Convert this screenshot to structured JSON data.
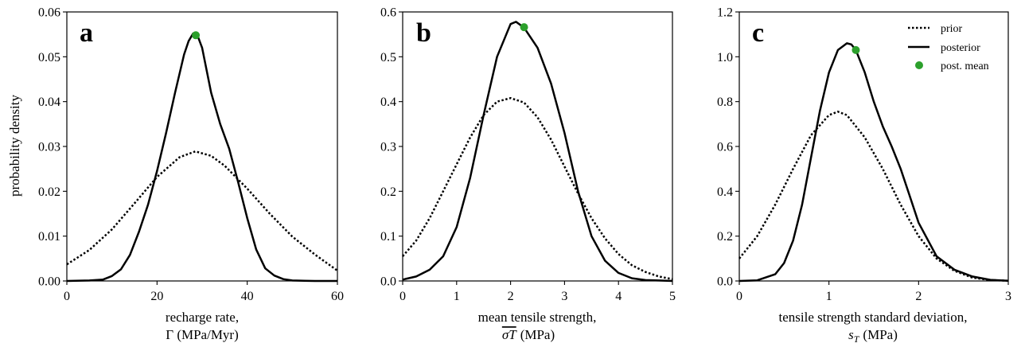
{
  "chart_data": [
    {
      "type": "line",
      "panel_label": "a",
      "xlabel_line1": "recharge rate,",
      "xlabel_line2": "Γ (MPa/Myr)",
      "ylabel": "probability density",
      "xlim": [
        0,
        60
      ],
      "ylim": [
        0,
        0.06
      ],
      "xticks": [
        0,
        20,
        40,
        60
      ],
      "xtick_labels": [
        "0",
        "20",
        "40",
        "60"
      ],
      "yticks": [
        0,
        0.01,
        0.02,
        0.03,
        0.04,
        0.05,
        0.06
      ],
      "ytick_labels": [
        "0.00",
        "0.01",
        "0.02",
        "0.03",
        "0.04",
        "0.05",
        "0.06"
      ],
      "series": [
        {
          "name": "prior",
          "style": "dotted",
          "color": "#000000",
          "x": [
            0,
            5,
            10,
            15,
            20,
            25,
            28.5,
            32,
            35,
            40,
            45,
            50,
            55,
            60
          ],
          "y": [
            0.0037,
            0.0069,
            0.0115,
            0.0173,
            0.0232,
            0.0276,
            0.0289,
            0.0279,
            0.0257,
            0.0206,
            0.015,
            0.0099,
            0.0059,
            0.0023
          ]
        },
        {
          "name": "posterior",
          "style": "solid",
          "color": "#000000",
          "x": [
            0,
            5,
            8,
            10,
            12,
            14,
            16,
            18,
            20,
            22,
            24,
            26,
            27,
            28,
            29,
            30,
            32,
            34,
            36,
            38,
            40,
            42,
            44,
            46,
            48,
            50,
            55,
            60
          ],
          "y": [
            0,
            0.0001,
            0.0003,
            0.0011,
            0.0026,
            0.0058,
            0.011,
            0.017,
            0.0245,
            0.033,
            0.042,
            0.0505,
            0.0535,
            0.0552,
            0.0547,
            0.052,
            0.042,
            0.035,
            0.0295,
            0.022,
            0.014,
            0.007,
            0.0028,
            0.0012,
            0.0004,
            0.0001,
            0,
            0
          ]
        }
      ],
      "post_mean": {
        "x": 28.6,
        "y": 0.0548,
        "color": "#2ca02c"
      }
    },
    {
      "type": "line",
      "panel_label": "b",
      "xlabel_line1": "mean tensile strength,",
      "xlabel_line2_math": "σT",
      "xlabel_line2_unit": "(MPa)",
      "xlim": [
        0,
        5
      ],
      "ylim": [
        0,
        0.6
      ],
      "xticks": [
        0,
        1,
        2,
        3,
        4,
        5
      ],
      "xtick_labels": [
        "0",
        "1",
        "2",
        "3",
        "4",
        "5"
      ],
      "yticks": [
        0,
        0.1,
        0.2,
        0.3,
        0.4,
        0.5,
        0.6
      ],
      "ytick_labels": [
        "0.0",
        "0.1",
        "0.2",
        "0.3",
        "0.4",
        "0.5",
        "0.6"
      ],
      "series": [
        {
          "name": "prior",
          "style": "dotted",
          "color": "#000000",
          "x": [
            0,
            0.25,
            0.5,
            0.75,
            1.0,
            1.25,
            1.5,
            1.75,
            2.0,
            2.25,
            2.5,
            2.75,
            3.0,
            3.25,
            3.5,
            3.75,
            4.0,
            4.25,
            4.5,
            4.75,
            5.0
          ],
          "y": [
            0.055,
            0.09,
            0.14,
            0.2,
            0.26,
            0.32,
            0.37,
            0.4,
            0.408,
            0.398,
            0.365,
            0.315,
            0.255,
            0.195,
            0.14,
            0.095,
            0.06,
            0.035,
            0.02,
            0.01,
            0.004
          ]
        },
        {
          "name": "posterior",
          "style": "solid",
          "color": "#000000",
          "x": [
            0,
            0.25,
            0.5,
            0.75,
            1.0,
            1.25,
            1.5,
            1.75,
            2.0,
            2.1,
            2.25,
            2.5,
            2.75,
            3.0,
            3.25,
            3.5,
            3.75,
            4.0,
            4.25,
            4.5,
            4.75,
            5.0
          ],
          "y": [
            0.003,
            0.01,
            0.025,
            0.055,
            0.12,
            0.23,
            0.37,
            0.5,
            0.573,
            0.578,
            0.565,
            0.52,
            0.44,
            0.33,
            0.2,
            0.1,
            0.045,
            0.018,
            0.006,
            0.002,
            0.001,
            0
          ]
        }
      ],
      "post_mean": {
        "x": 2.25,
        "y": 0.566,
        "color": "#2ca02c"
      }
    },
    {
      "type": "line",
      "panel_label": "c",
      "xlabel_line1": "tensile strength standard deviation,",
      "xlabel_line2_math": "s",
      "xlabel_line2_sub": "T",
      "xlabel_line2_unit": "(MPa)",
      "xlim": [
        0,
        3
      ],
      "ylim": [
        0,
        1.2
      ],
      "xticks": [
        0,
        1,
        2,
        3
      ],
      "xtick_labels": [
        "0",
        "1",
        "2",
        "3"
      ],
      "yticks": [
        0,
        0.2,
        0.4,
        0.6,
        0.8,
        1.0,
        1.2
      ],
      "ytick_labels": [
        "0.0",
        "0.2",
        "0.4",
        "0.6",
        "0.8",
        "1.0",
        "1.2"
      ],
      "series": [
        {
          "name": "prior",
          "style": "dotted",
          "color": "#000000",
          "x": [
            0,
            0.2,
            0.4,
            0.6,
            0.8,
            1.0,
            1.1,
            1.2,
            1.4,
            1.6,
            1.8,
            2.0,
            2.2,
            2.4,
            2.6,
            2.8,
            3.0
          ],
          "y": [
            0.1,
            0.2,
            0.34,
            0.5,
            0.65,
            0.74,
            0.755,
            0.74,
            0.64,
            0.5,
            0.34,
            0.2,
            0.1,
            0.045,
            0.015,
            0.004,
            0.001
          ]
        },
        {
          "name": "posterior",
          "style": "solid",
          "color": "#000000",
          "x": [
            0,
            0.2,
            0.4,
            0.5,
            0.6,
            0.7,
            0.8,
            0.9,
            1.0,
            1.1,
            1.2,
            1.25,
            1.3,
            1.4,
            1.5,
            1.6,
            1.7,
            1.8,
            1.9,
            2.0,
            2.2,
            2.4,
            2.6,
            2.8,
            3.0
          ],
          "y": [
            0,
            0.003,
            0.03,
            0.08,
            0.18,
            0.34,
            0.55,
            0.76,
            0.93,
            1.03,
            1.06,
            1.055,
            1.03,
            0.93,
            0.8,
            0.69,
            0.6,
            0.5,
            0.38,
            0.26,
            0.11,
            0.05,
            0.02,
            0.005,
            0.001
          ]
        }
      ],
      "post_mean": {
        "x": 1.3,
        "y": 1.03,
        "color": "#2ca02c"
      }
    }
  ],
  "legend": {
    "placement": "top-right of panel c",
    "items": [
      {
        "label": "prior",
        "style": "dotted"
      },
      {
        "label": "posterior",
        "style": "solid"
      },
      {
        "label": "post. mean",
        "style": "marker",
        "color": "#2ca02c"
      }
    ]
  }
}
